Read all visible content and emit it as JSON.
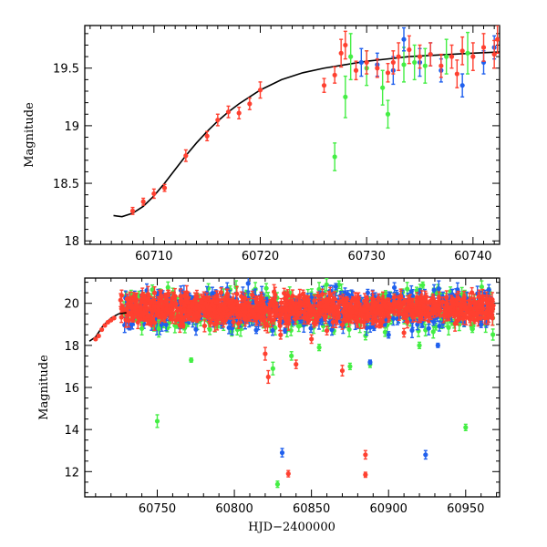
{
  "chart_data": [
    {
      "type": "scatter",
      "panel": "top",
      "title": "",
      "xlabel": "",
      "ylabel": "Magnitude",
      "xlim": [
        60703.5,
        60742.5
      ],
      "ylim": [
        19.87,
        17.97
      ],
      "y_inverted": true,
      "xticks": [
        60710,
        60720,
        60730,
        60740
      ],
      "yticks": [
        18,
        18.5,
        19,
        19.5
      ],
      "model_curve": {
        "x": [
          60706.2,
          60707,
          60708,
          60709,
          60710,
          60711,
          60712,
          60713,
          60714,
          60715,
          60716,
          60717,
          60718,
          60719,
          60720,
          60722,
          60724,
          60726,
          60728,
          60730,
          60732,
          60734,
          60736,
          60738,
          60740,
          60742.5
        ],
        "y": [
          18.22,
          18.21,
          18.24,
          18.3,
          18.39,
          18.5,
          18.62,
          18.74,
          18.85,
          18.95,
          19.04,
          19.12,
          19.19,
          19.25,
          19.31,
          19.4,
          19.46,
          19.5,
          19.53,
          19.56,
          19.58,
          19.6,
          19.61,
          19.62,
          19.63,
          19.64
        ]
      },
      "series": [
        {
          "name": "red",
          "color": "#ff4030",
          "points": [
            {
              "x": 60708.0,
              "y": 18.26,
              "err": 0.03
            },
            {
              "x": 60709.0,
              "y": 18.34,
              "err": 0.03
            },
            {
              "x": 60710.0,
              "y": 18.41,
              "err": 0.04
            },
            {
              "x": 60711.0,
              "y": 18.46,
              "err": 0.03
            },
            {
              "x": 60713.0,
              "y": 18.74,
              "err": 0.05
            },
            {
              "x": 60715.0,
              "y": 18.91,
              "err": 0.04
            },
            {
              "x": 60716.0,
              "y": 19.05,
              "err": 0.05
            },
            {
              "x": 60717.0,
              "y": 19.12,
              "err": 0.05
            },
            {
              "x": 60718.0,
              "y": 19.11,
              "err": 0.05
            },
            {
              "x": 60719.0,
              "y": 19.19,
              "err": 0.05
            },
            {
              "x": 60720.0,
              "y": 19.31,
              "err": 0.07
            },
            {
              "x": 60726.0,
              "y": 19.35,
              "err": 0.06
            },
            {
              "x": 60727.0,
              "y": 19.44,
              "err": 0.07
            },
            {
              "x": 60727.6,
              "y": 19.63,
              "err": 0.12
            },
            {
              "x": 60728.0,
              "y": 19.7,
              "err": 0.12
            },
            {
              "x": 60729.0,
              "y": 19.48,
              "err": 0.08
            },
            {
              "x": 60730.0,
              "y": 19.55,
              "err": 0.1
            },
            {
              "x": 60731.0,
              "y": 19.5,
              "err": 0.08
            },
            {
              "x": 60732.0,
              "y": 19.46,
              "err": 0.08
            },
            {
              "x": 60732.5,
              "y": 19.55,
              "err": 0.1
            },
            {
              "x": 60733.0,
              "y": 19.6,
              "err": 0.12
            },
            {
              "x": 60734.0,
              "y": 19.66,
              "err": 0.12
            },
            {
              "x": 60735.0,
              "y": 19.6,
              "err": 0.1
            },
            {
              "x": 60736.0,
              "y": 19.62,
              "err": 0.1
            },
            {
              "x": 60737.0,
              "y": 19.52,
              "err": 0.1
            },
            {
              "x": 60738.0,
              "y": 19.6,
              "err": 0.1
            },
            {
              "x": 60738.5,
              "y": 19.45,
              "err": 0.12
            },
            {
              "x": 60739.0,
              "y": 19.65,
              "err": 0.12
            },
            {
              "x": 60740.0,
              "y": 19.6,
              "err": 0.12
            },
            {
              "x": 60741.0,
              "y": 19.68,
              "err": 0.12
            },
            {
              "x": 60742.0,
              "y": 19.62,
              "err": 0.12
            },
            {
              "x": 60742.3,
              "y": 19.75,
              "err": 0.12
            }
          ]
        },
        {
          "name": "green",
          "color": "#44ee44",
          "points": [
            {
              "x": 60727.0,
              "y": 18.73,
              "err": 0.12
            },
            {
              "x": 60728.0,
              "y": 19.25,
              "err": 0.18
            },
            {
              "x": 60728.5,
              "y": 19.6,
              "err": 0.2
            },
            {
              "x": 60730.0,
              "y": 19.5,
              "err": 0.15
            },
            {
              "x": 60731.5,
              "y": 19.33,
              "err": 0.15
            },
            {
              "x": 60732.0,
              "y": 19.1,
              "err": 0.12
            },
            {
              "x": 60733.5,
              "y": 19.53,
              "err": 0.15
            },
            {
              "x": 60734.5,
              "y": 19.55,
              "err": 0.15
            },
            {
              "x": 60735.5,
              "y": 19.52,
              "err": 0.15
            },
            {
              "x": 60737.5,
              "y": 19.6,
              "err": 0.15
            },
            {
              "x": 60739.5,
              "y": 19.63,
              "err": 0.18
            }
          ]
        },
        {
          "name": "blue",
          "color": "#2060ee",
          "points": [
            {
              "x": 60729.5,
              "y": 19.55,
              "err": 0.12
            },
            {
              "x": 60731.0,
              "y": 19.53,
              "err": 0.1
            },
            {
              "x": 60732.5,
              "y": 19.48,
              "err": 0.12
            },
            {
              "x": 60733.5,
              "y": 19.75,
              "err": 0.1
            },
            {
              "x": 60735.0,
              "y": 19.55,
              "err": 0.12
            },
            {
              "x": 60736.0,
              "y": 19.62,
              "err": 0.1
            },
            {
              "x": 60737.0,
              "y": 19.48,
              "err": 0.1
            },
            {
              "x": 60739.0,
              "y": 19.35,
              "err": 0.1
            },
            {
              "x": 60741.0,
              "y": 19.55,
              "err": 0.1
            },
            {
              "x": 60742.0,
              "y": 19.68,
              "err": 0.1
            }
          ]
        }
      ]
    },
    {
      "type": "scatter",
      "panel": "bottom",
      "title": "",
      "xlabel": "HJD−2400000",
      "ylabel": "Magnitude",
      "xlim": [
        60703,
        60972
      ],
      "ylim": [
        21.2,
        10.8
      ],
      "y_inverted": true,
      "xticks": [
        60750,
        60800,
        60850,
        60900,
        60950
      ],
      "yticks": [
        12,
        14,
        16,
        18,
        20
      ],
      "model_curve": {
        "x": [
          60706,
          60710,
          60715,
          60720,
          60725,
          60730
        ],
        "y": [
          18.2,
          18.4,
          18.95,
          19.3,
          19.5,
          19.55
        ]
      },
      "series": [
        {
          "name": "red",
          "color": "#ff4030",
          "points": [
            {
              "x": 60710,
              "y": 18.3,
              "err": 0.05
            },
            {
              "x": 60712,
              "y": 18.45,
              "err": 0.05
            },
            {
              "x": 60714,
              "y": 18.75,
              "err": 0.05
            },
            {
              "x": 60716,
              "y": 18.95,
              "err": 0.05
            },
            {
              "x": 60718,
              "y": 19.1,
              "err": 0.05
            },
            {
              "x": 60720,
              "y": 19.2,
              "err": 0.05
            },
            {
              "x": 60722,
              "y": 19.3,
              "err": 0.05
            },
            {
              "x": 60835,
              "y": 11.9,
              "err": 0.15
            },
            {
              "x": 60885,
              "y": 11.85,
              "err": 0.12
            },
            {
              "x": 60885,
              "y": 12.8,
              "err": 0.2
            },
            {
              "x": 60822,
              "y": 16.5,
              "err": 0.3
            },
            {
              "x": 60820,
              "y": 17.6,
              "err": 0.3
            },
            {
              "x": 60840,
              "y": 17.1,
              "err": 0.2
            },
            {
              "x": 60870,
              "y": 16.8,
              "err": 0.25
            },
            {
              "x": 60850,
              "y": 18.3,
              "err": 0.2
            },
            {
              "x": 60830,
              "y": 18.5,
              "err": 0.2
            },
            {
              "x": 60860,
              "y": 18.7,
              "err": 0.2
            },
            {
              "x": 60910,
              "y": 18.6,
              "err": 0.2
            }
          ]
        },
        {
          "name": "green",
          "color": "#44ee44",
          "points": [
            {
              "x": 60828,
              "y": 11.4,
              "err": 0.15
            },
            {
              "x": 60750,
              "y": 14.4,
              "err": 0.3
            },
            {
              "x": 60950,
              "y": 14.1,
              "err": 0.15
            },
            {
              "x": 60825,
              "y": 16.9,
              "err": 0.3
            },
            {
              "x": 60837,
              "y": 17.5,
              "err": 0.2
            },
            {
              "x": 60772,
              "y": 17.3,
              "err": 0.1
            },
            {
              "x": 60888,
              "y": 17.1,
              "err": 0.15
            },
            {
              "x": 60875,
              "y": 17.0,
              "err": 0.15
            },
            {
              "x": 60855,
              "y": 17.9,
              "err": 0.15
            },
            {
              "x": 60920,
              "y": 18.0,
              "err": 0.15
            },
            {
              "x": 60751,
              "y": 18.8,
              "err": 0.4
            },
            {
              "x": 60740,
              "y": 18.8,
              "err": 0.3
            }
          ]
        },
        {
          "name": "blue",
          "color": "#2060ee",
          "points": [
            {
              "x": 60831,
              "y": 12.9,
              "err": 0.2
            },
            {
              "x": 60924,
              "y": 12.8,
              "err": 0.2
            },
            {
              "x": 60888,
              "y": 17.2,
              "err": 0.1
            },
            {
              "x": 60932,
              "y": 18.0,
              "err": 0.1
            },
            {
              "x": 60900,
              "y": 18.5,
              "err": 0.15
            },
            {
              "x": 60960,
              "y": 19.0,
              "err": 0.15
            }
          ]
        }
      ]
    }
  ]
}
